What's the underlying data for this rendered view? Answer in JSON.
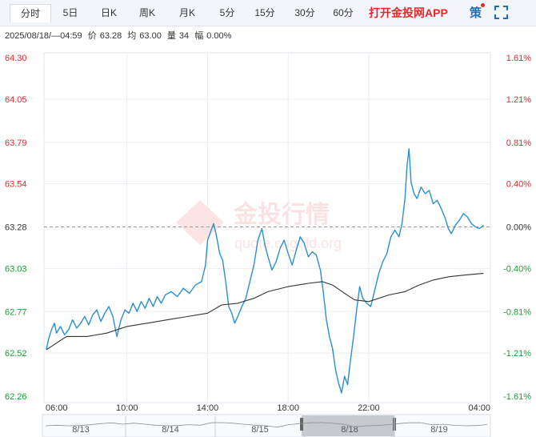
{
  "toolbar": {
    "tabs": [
      {
        "label": "分时",
        "active": true
      },
      {
        "label": "5日",
        "active": false
      },
      {
        "label": "日K",
        "active": false
      },
      {
        "label": "周K",
        "active": false
      },
      {
        "label": "月K",
        "active": false
      },
      {
        "label": "5分",
        "active": false
      },
      {
        "label": "15分",
        "active": false
      },
      {
        "label": "30分",
        "active": false
      },
      {
        "label": "60分",
        "active": false
      }
    ],
    "app_link": "打开金投网APP",
    "strategy_label": "策",
    "fullscreen_icon": "fullscreen-icon"
  },
  "info": {
    "datetime": "2025/08/18/—04:59",
    "price_label": "价",
    "price": "63.28",
    "avg_label": "均",
    "avg": "63.00",
    "vol_label": "量",
    "vol": "34",
    "change_label": "幅",
    "change": "0.00%"
  },
  "watermark": {
    "text": "金投行情",
    "url": "quote.cngold.org"
  },
  "colors": {
    "up": "#e8262c",
    "down": "#1a9c35",
    "price_line": "#2a8fd0",
    "avg_line": "#333333",
    "grid": "#e8edf2",
    "baseline": "#999999"
  },
  "chart_data": {
    "type": "line",
    "y_ticks": [
      "64.30",
      "64.05",
      "63.79",
      "63.54",
      "63.28",
      "63.03",
      "62.77",
      "62.52",
      "62.26"
    ],
    "pct_ticks": [
      "1.61%",
      "1.21%",
      "0.81%",
      "0.40%",
      "0.00%",
      "-0.40%",
      "-0.81%",
      "-1.21%",
      "-1.61%"
    ],
    "x_ticks": [
      "06:00",
      "10:00",
      "14:00",
      "18:00",
      "22:00",
      "04:00"
    ],
    "ylim": [
      62.26,
      64.3
    ],
    "baseline": 63.28,
    "series": [
      {
        "role": "price",
        "points": [
          [
            0.0,
            62.54
          ],
          [
            0.1,
            62.6
          ],
          [
            0.25,
            62.66
          ],
          [
            0.4,
            62.7
          ],
          [
            0.5,
            62.64
          ],
          [
            0.7,
            62.68
          ],
          [
            0.9,
            62.63
          ],
          [
            1.1,
            62.66
          ],
          [
            1.3,
            62.72
          ],
          [
            1.5,
            62.67
          ],
          [
            1.7,
            62.7
          ],
          [
            1.9,
            62.74
          ],
          [
            2.1,
            62.69
          ],
          [
            2.3,
            62.75
          ],
          [
            2.5,
            62.78
          ],
          [
            2.7,
            62.71
          ],
          [
            2.9,
            62.76
          ],
          [
            3.1,
            62.8
          ],
          [
            3.3,
            62.74
          ],
          [
            3.5,
            62.62
          ],
          [
            3.7,
            62.72
          ],
          [
            3.9,
            62.78
          ],
          [
            4.1,
            62.76
          ],
          [
            4.3,
            62.82
          ],
          [
            4.5,
            62.77
          ],
          [
            4.7,
            62.83
          ],
          [
            4.9,
            62.79
          ],
          [
            5.1,
            62.85
          ],
          [
            5.3,
            62.8
          ],
          [
            5.5,
            62.86
          ],
          [
            5.7,
            62.82
          ],
          [
            5.9,
            62.87
          ],
          [
            6.2,
            62.89
          ],
          [
            6.5,
            62.86
          ],
          [
            6.8,
            62.91
          ],
          [
            7.1,
            62.88
          ],
          [
            7.4,
            62.93
          ],
          [
            7.7,
            62.95
          ],
          [
            7.9,
            63.05
          ],
          [
            8.0,
            63.2
          ],
          [
            8.15,
            63.25
          ],
          [
            8.3,
            63.3
          ],
          [
            8.45,
            63.22
          ],
          [
            8.6,
            63.12
          ],
          [
            8.75,
            63.08
          ],
          [
            8.9,
            62.95
          ],
          [
            9.05,
            62.8
          ],
          [
            9.2,
            62.76
          ],
          [
            9.35,
            62.7
          ],
          [
            9.5,
            62.74
          ],
          [
            9.7,
            62.8
          ],
          [
            9.9,
            62.85
          ],
          [
            10.1,
            62.95
          ],
          [
            10.3,
            63.05
          ],
          [
            10.5,
            63.2
          ],
          [
            10.7,
            63.27
          ],
          [
            10.85,
            63.17
          ],
          [
            11.0,
            63.1
          ],
          [
            11.2,
            63.02
          ],
          [
            11.4,
            63.07
          ],
          [
            11.6,
            63.15
          ],
          [
            11.8,
            63.2
          ],
          [
            12.0,
            63.12
          ],
          [
            12.2,
            63.05
          ],
          [
            12.4,
            63.14
          ],
          [
            12.6,
            63.22
          ],
          [
            12.8,
            63.18
          ],
          [
            13.0,
            63.1
          ],
          [
            13.2,
            63.13
          ],
          [
            13.4,
            63.11
          ],
          [
            13.6,
            63.02
          ],
          [
            13.75,
            62.88
          ],
          [
            13.9,
            62.72
          ],
          [
            14.05,
            62.62
          ],
          [
            14.2,
            62.55
          ],
          [
            14.35,
            62.42
          ],
          [
            14.5,
            62.34
          ],
          [
            14.65,
            62.28
          ],
          [
            14.8,
            62.38
          ],
          [
            14.95,
            62.33
          ],
          [
            15.1,
            62.48
          ],
          [
            15.25,
            62.62
          ],
          [
            15.4,
            62.78
          ],
          [
            15.55,
            62.92
          ],
          [
            15.7,
            62.85
          ],
          [
            15.9,
            62.82
          ],
          [
            16.1,
            62.8
          ],
          [
            16.3,
            62.9
          ],
          [
            16.5,
            63.0
          ],
          [
            16.7,
            63.07
          ],
          [
            16.9,
            63.12
          ],
          [
            17.1,
            63.22
          ],
          [
            17.3,
            63.26
          ],
          [
            17.5,
            63.22
          ],
          [
            17.65,
            63.3
          ],
          [
            17.8,
            63.45
          ],
          [
            17.9,
            63.65
          ],
          [
            18.0,
            63.75
          ],
          [
            18.1,
            63.55
          ],
          [
            18.25,
            63.48
          ],
          [
            18.4,
            63.45
          ],
          [
            18.6,
            63.52
          ],
          [
            18.8,
            63.48
          ],
          [
            19.0,
            63.5
          ],
          [
            19.2,
            63.42
          ],
          [
            19.4,
            63.44
          ],
          [
            19.6,
            63.39
          ],
          [
            19.8,
            63.33
          ],
          [
            19.95,
            63.27
          ],
          [
            20.1,
            63.24
          ],
          [
            20.3,
            63.29
          ],
          [
            20.5,
            63.32
          ],
          [
            20.7,
            63.36
          ],
          [
            20.9,
            63.34
          ],
          [
            21.1,
            63.3
          ],
          [
            21.3,
            63.28
          ],
          [
            21.5,
            63.27
          ],
          [
            21.7,
            63.29
          ]
        ]
      },
      {
        "role": "average",
        "points": [
          [
            0.0,
            62.54
          ],
          [
            1.0,
            62.62
          ],
          [
            2.0,
            62.62
          ],
          [
            3.0,
            62.64
          ],
          [
            4.0,
            62.68
          ],
          [
            5.0,
            62.7
          ],
          [
            6.0,
            62.72
          ],
          [
            7.0,
            62.74
          ],
          [
            8.0,
            62.76
          ],
          [
            8.7,
            62.81
          ],
          [
            9.5,
            62.82
          ],
          [
            10.3,
            62.85
          ],
          [
            11.0,
            62.89
          ],
          [
            12.0,
            62.92
          ],
          [
            13.0,
            62.94
          ],
          [
            13.7,
            62.95
          ],
          [
            14.2,
            62.93
          ],
          [
            14.8,
            62.88
          ],
          [
            15.3,
            62.84
          ],
          [
            16.0,
            62.83
          ],
          [
            17.0,
            62.87
          ],
          [
            17.8,
            62.89
          ],
          [
            18.5,
            62.93
          ],
          [
            19.2,
            62.96
          ],
          [
            20.0,
            62.98
          ],
          [
            20.8,
            62.99
          ],
          [
            21.7,
            63.0
          ]
        ]
      }
    ],
    "grid": true
  },
  "navigator": {
    "dates": [
      "8/13",
      "8/14",
      "8/15",
      "8/18",
      "8/19"
    ],
    "selected": "8/18"
  }
}
